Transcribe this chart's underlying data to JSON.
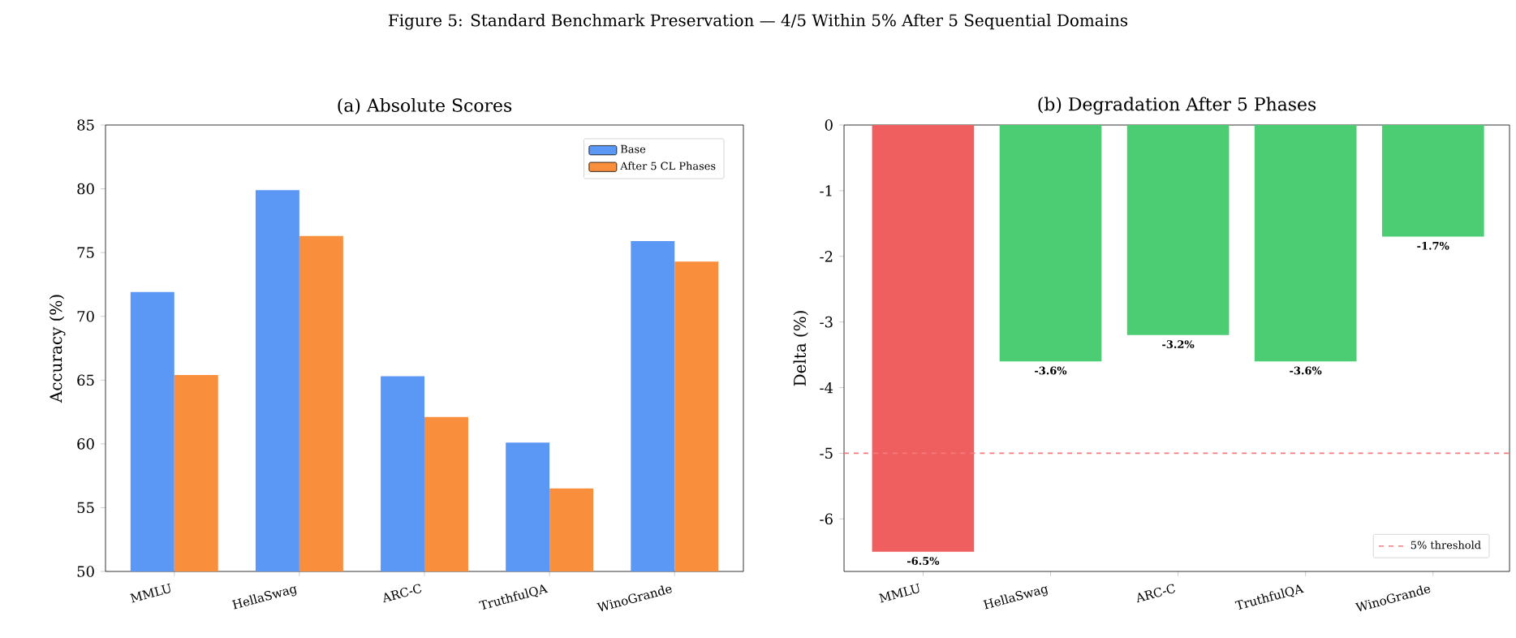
{
  "chart_data": [
    {
      "type": "bar",
      "title": "(a) Absolute Scores",
      "ylabel": "Accuracy (%)",
      "annotations": [
        "Figure 5: Standard Benchmark Preservation — 4/5 Within 5% After 5 Sequential Domains"
      ],
      "categories": [
        "MMLU",
        "HellaSwag",
        "ARC-C",
        "TruthfulQA",
        "WinoGrande"
      ],
      "series": [
        {
          "name": "Base",
          "color": "#5b97f5",
          "values": [
            71.9,
            79.9,
            65.3,
            60.1,
            75.9
          ]
        },
        {
          "name": "After 5 CL Phases",
          "color": "#f98f3c",
          "values": [
            65.4,
            76.3,
            62.1,
            56.5,
            74.3
          ]
        }
      ],
      "ylim": [
        50,
        85
      ],
      "yticks": [
        50,
        55,
        60,
        65,
        70,
        75,
        80,
        85
      ],
      "legend": "top right"
    },
    {
      "type": "bar",
      "title": "(b) Degradation After 5 Phases",
      "ylabel": "Delta (%)",
      "categories": [
        "MMLU",
        "HellaSwag",
        "ARC-C",
        "TruthfulQA",
        "WinoGrande"
      ],
      "values": [
        -6.5,
        -3.6,
        -3.2,
        -3.6,
        -1.7
      ],
      "colors": [
        "#ef5f5f",
        "#4ccd74",
        "#4ccd74",
        "#4ccd74",
        "#4ccd74"
      ],
      "value_labels": [
        "-6.5%",
        "-3.6%",
        "-3.2%",
        "-3.6%",
        "-1.7%"
      ],
      "ylim": [
        -6.8,
        0
      ],
      "yticks": [
        -6,
        -5,
        -4,
        -3,
        -2,
        -1,
        0
      ],
      "ref_lines": [
        {
          "axis": "y",
          "value": -5,
          "label": "5% threshold",
          "color": "#f47c7c",
          "line_style": "dashed"
        }
      ],
      "legend": "bottom right"
    }
  ]
}
